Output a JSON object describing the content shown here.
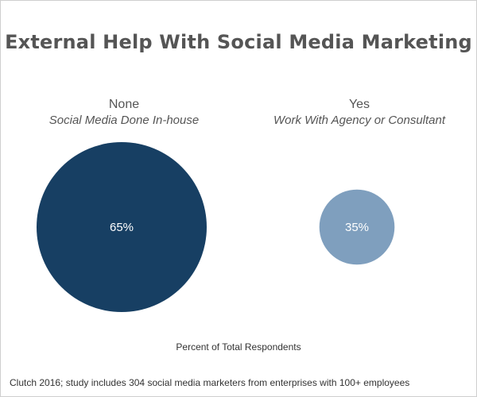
{
  "chart_data": {
    "type": "bubble",
    "title": "External Help With Social Media Marketing",
    "xlabel": "Percent of Total Respondents",
    "source": "Clutch 2016; study includes 304 social media marketers from enterprises with 100+ employees",
    "categories": [
      {
        "label": "None",
        "sublabel": "Social Media Done In-house",
        "value": 65,
        "value_label": "65%",
        "color": "#173f63"
      },
      {
        "label": "Yes",
        "sublabel": "Work With Agency or Consultant",
        "value": 35,
        "value_label": "35%",
        "color": "#7f9fbe"
      }
    ],
    "grid": false,
    "legend": "none"
  }
}
